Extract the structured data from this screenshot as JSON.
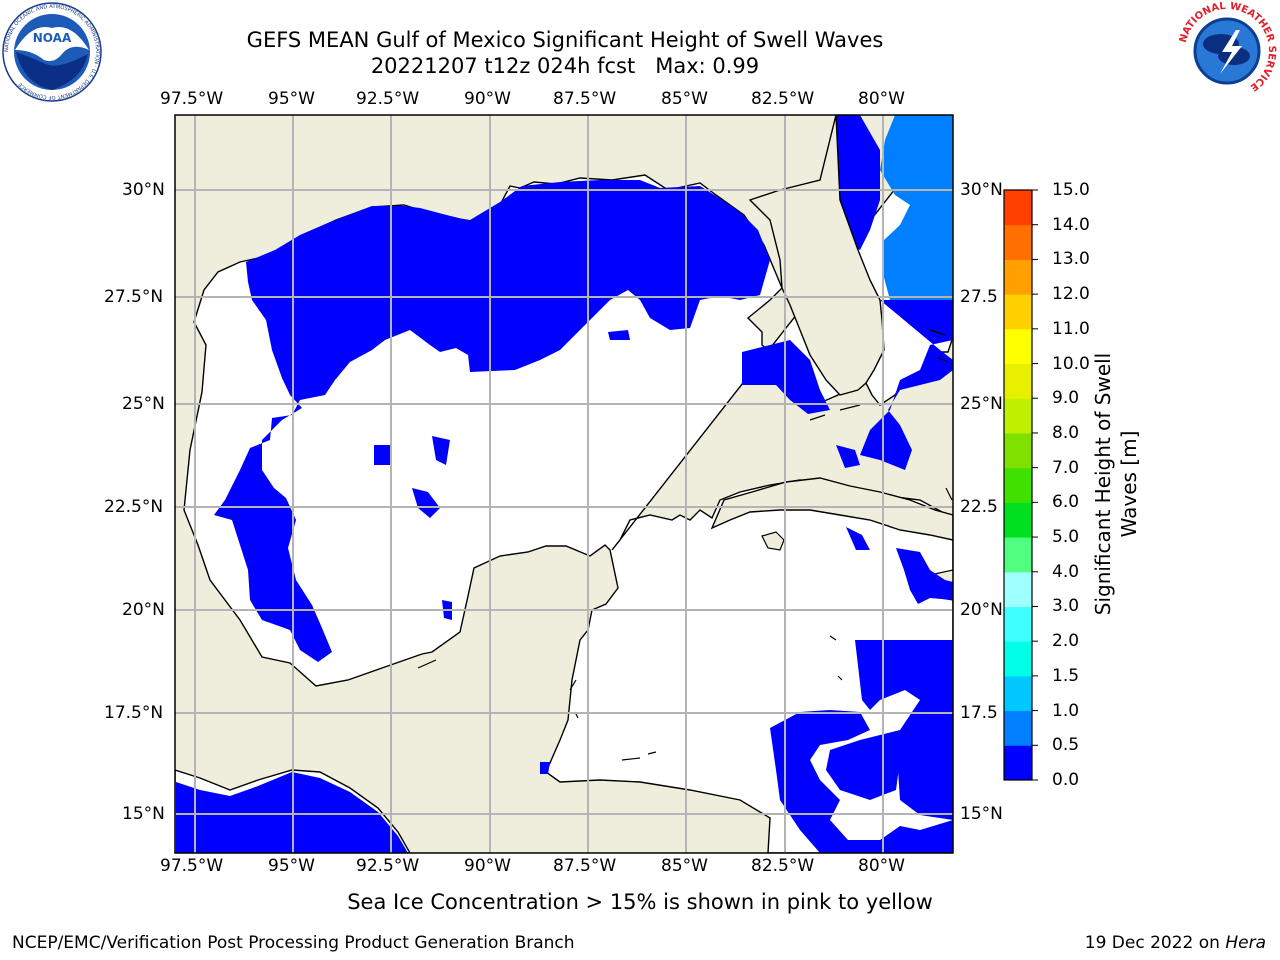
{
  "header": {
    "title_line1": "GEFS MEAN Gulf of Mexico Significant Height of Swell Waves",
    "title_line2": "20221207 t12z 024h fcst   Max: 0.99"
  },
  "logos": {
    "noaa_text": "NOAA",
    "noaa_ring_text": "NATIONAL OCEANIC AND ATMOSPHERIC ADMINISTRATION · U.S. DEPARTMENT OF COMMERCE",
    "nws_ring_text": "NATIONAL WEATHER SERVICE"
  },
  "map": {
    "lon_labels": [
      "97.5°W",
      "95°W",
      "92.5°W",
      "90°W",
      "87.5°W",
      "85°W",
      "82.5°W",
      "80°W"
    ],
    "lat_labels_left": [
      "30°N",
      "27.5°N",
      "25°N",
      "22.5°N",
      "20°N",
      "17.5°N",
      "15°N"
    ],
    "lat_labels_right": [
      "30°N",
      "27.5",
      "25°N",
      "22.5",
      "20°N",
      "17.5",
      "15°N"
    ],
    "colors": {
      "land": "#efeedc",
      "swell_0_0_5": "#0000ff",
      "swell_0_5_1_0": "#0080ff",
      "grid": "#b4b4b4"
    }
  },
  "colorbar": {
    "tick_labels": [
      "0.0",
      "0.5",
      "1.0",
      "1.5",
      "2.0",
      "3.0",
      "4.0",
      "5.0",
      "6.0",
      "7.0",
      "8.0",
      "9.0",
      "10.0",
      "11.0",
      "12.0",
      "13.0",
      "14.0",
      "15.0"
    ],
    "colors": [
      "#0000ff",
      "#0080ff",
      "#00c8ff",
      "#00ffe6",
      "#40ffff",
      "#a0ffff",
      "#50ff80",
      "#00e020",
      "#40e000",
      "#80e000",
      "#c0f000",
      "#e8f000",
      "#ffff00",
      "#ffd000",
      "#ffa000",
      "#ff7000",
      "#ff4000",
      "#ff0000"
    ],
    "title_line1": "Significant Height of Swell",
    "title_line2": "Waves [m]"
  },
  "caption": "Sea Ice Concentration > 15% is shown in pink to yellow",
  "footer": {
    "left": "NCEP/EMC/Verification Post Processing Product Generation Branch",
    "right_date": "19 Dec 2022 on",
    "right_host": "Hera"
  }
}
